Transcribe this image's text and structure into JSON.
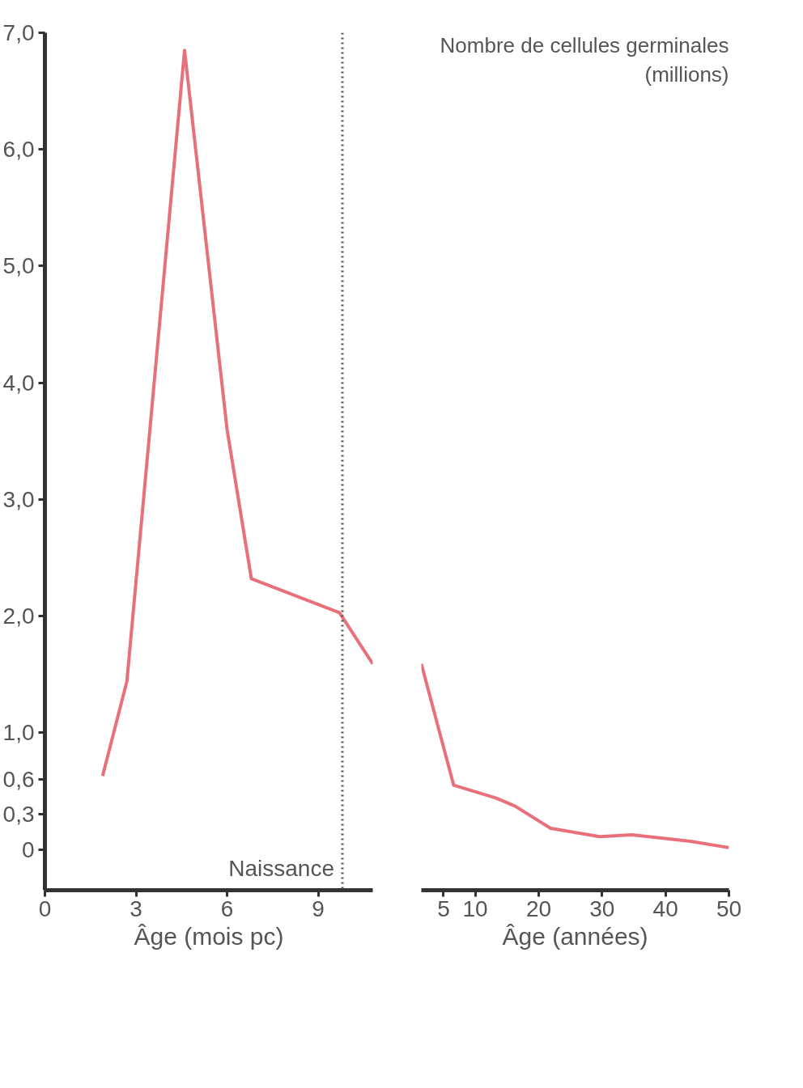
{
  "chart_data": [
    {
      "type": "line",
      "color": "#e8707a",
      "xlabel": "Âge (mois pc)",
      "x": [
        1.9,
        2.7,
        4.6,
        6.0,
        6.8,
        9.7,
        10.8
      ],
      "values": [
        0.63,
        1.44,
        6.85,
        3.6,
        2.32,
        2.03,
        1.59
      ],
      "xlim": [
        0,
        10.8
      ],
      "xticks": [
        0,
        3,
        6,
        9
      ],
      "ylim": [
        -0.35,
        7.0
      ],
      "yticks": [
        0,
        {
          "value": 0.3,
          "label": "0,3"
        },
        {
          "value": 0.6,
          "label": "0,6"
        },
        {
          "value": 1.0,
          "label": "1,0"
        },
        {
          "value": 2.0,
          "label": "2,0"
        },
        {
          "value": 3.0,
          "label": "3,0"
        },
        {
          "value": 4.0,
          "label": "4,0"
        },
        {
          "value": 5.0,
          "label": "5,0"
        },
        {
          "value": 6.0,
          "label": "6,0"
        },
        {
          "value": 7.0,
          "label": "7,0"
        }
      ],
      "ref_lines": [
        {
          "axis": "x",
          "value": 9.8,
          "label": "Naissance",
          "line_style": "dotted",
          "color": "#555555"
        }
      ]
    },
    {
      "type": "line",
      "color": "#e8707a",
      "xlabel": "Âge (années)",
      "ylabel": "Nombre de cellules germinales (millions)",
      "x": [
        1.5,
        6.6,
        13.3,
        16.3,
        21.9,
        29.6,
        34.7,
        43.9,
        50
      ],
      "values": [
        1.59,
        0.55,
        0.44,
        0.37,
        0.18,
        0.11,
        0.125,
        0.07,
        0.015
      ],
      "xlim": [
        1.5,
        50
      ],
      "xticks": [
        5,
        10,
        20,
        30,
        40,
        50
      ],
      "ylim": [
        -0.35,
        7.0
      ],
      "tick_labels": "x"
    }
  ]
}
